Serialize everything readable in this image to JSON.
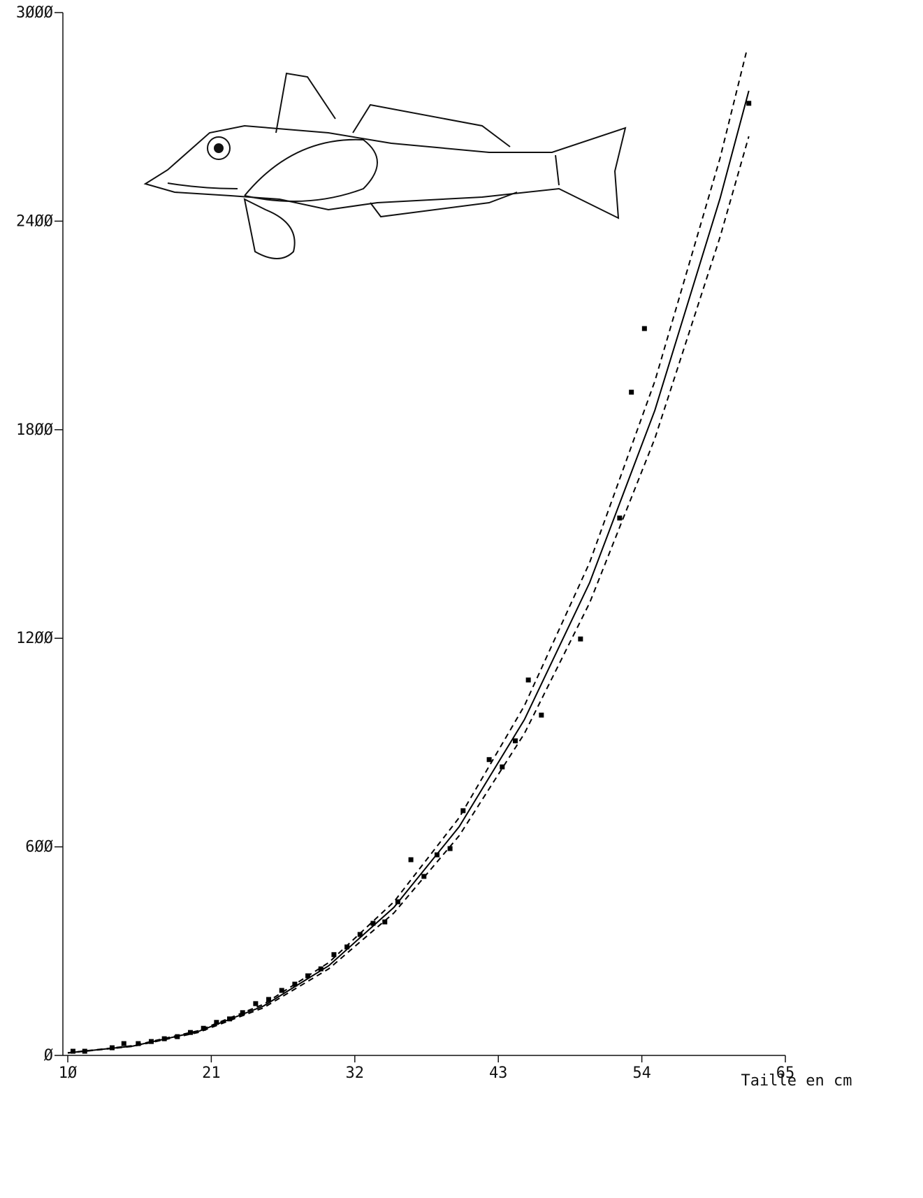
{
  "chart_data": {
    "type": "scatter",
    "xlabel": "Taille en cm",
    "xlim": [
      10,
      65
    ],
    "xticks": [
      {
        "value": 10,
        "label": "1Ø"
      },
      21,
      32,
      43,
      54,
      65
    ],
    "ylim": [
      0,
      3000
    ],
    "yticks": [
      {
        "value": 0,
        "label": "Ø"
      },
      {
        "value": 600,
        "label": "6ØØ"
      },
      {
        "value": 1200,
        "label": "12ØØ"
      },
      {
        "value": 1800,
        "label": "18ØØ"
      },
      {
        "value": 2400,
        "label": "24ØØ"
      },
      {
        "value": 3000,
        "label": "3ØØØ"
      }
    ],
    "color": "#000000",
    "x": [
      10.4,
      11.3,
      13.4,
      14.3,
      15.4,
      16.4,
      17.4,
      18.4,
      19.4,
      20.4,
      21.4,
      22.4,
      23.4,
      24.4,
      25.4,
      26.4,
      27.4,
      28.4,
      29.4,
      30.4,
      31.4,
      32.4,
      33.4,
      34.3,
      35.3,
      36.3,
      37.3,
      38.3,
      39.3,
      40.3,
      42.3,
      43.3,
      44.3,
      45.3,
      46.3,
      49.3,
      52.3,
      53.2,
      54.2,
      62.2
    ],
    "values": [
      12,
      12,
      22,
      34,
      34,
      40,
      48,
      54,
      66,
      78,
      95,
      105,
      123,
      149,
      161,
      187,
      205,
      229,
      249,
      290,
      312,
      348,
      380,
      384,
      442,
      563,
      515,
      577,
      595,
      704,
      851,
      830,
      905,
      1080,
      979,
      1198,
      1546,
      1908,
      2091,
      2739
    ],
    "curves": [
      {
        "style": "solid",
        "x": [
          10,
          15,
          20,
          25,
          30,
          35,
          40,
          45,
          50,
          55,
          60,
          62.2
        ],
        "values": [
          7.2,
          26.9,
          68.7,
          142,
          258,
          426,
          658,
          966,
          1360,
          1856,
          2466,
          2775
        ]
      },
      {
        "style": "dashed",
        "x": [
          10,
          15,
          20,
          25,
          30,
          35,
          40,
          45,
          50,
          55,
          60,
          62
        ],
        "values": [
          7.5,
          28,
          71,
          147,
          267,
          442,
          684,
          1006,
          1418,
          1940,
          2582,
          2885
        ]
      },
      {
        "style": "dashed",
        "x": [
          10,
          15,
          20,
          25,
          30,
          35,
          40,
          45,
          50,
          55,
          60,
          62.2
        ],
        "values": [
          7,
          26,
          66,
          137,
          249,
          410,
          632,
          926,
          1302,
          1775,
          2355,
          2644
        ]
      }
    ]
  }
}
